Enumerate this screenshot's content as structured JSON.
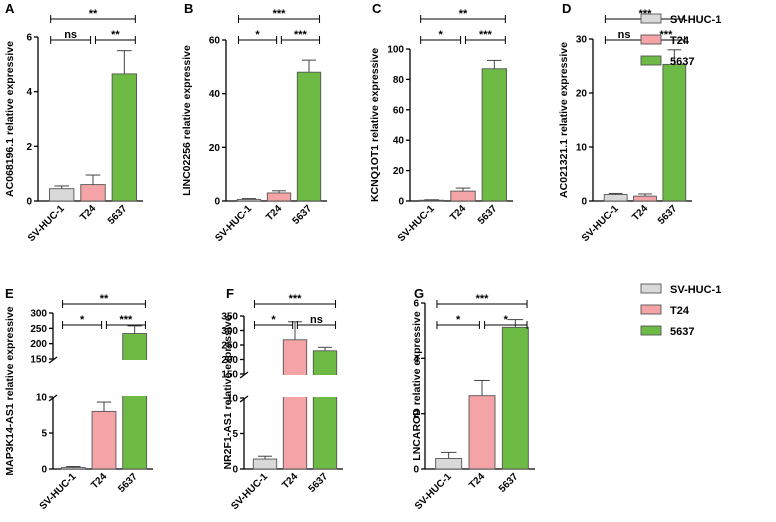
{
  "colors": {
    "SV-HUC-1": "#d9d9d9",
    "T24": "#f4a3a7",
    "5637": "#6dbb45"
  },
  "legend": [
    "SV-HUC-1",
    "T24",
    "5637"
  ],
  "chart_data": [
    {
      "panel": "A",
      "type": "bar",
      "categories": [
        "SV-HUC-1",
        "T24",
        "5637"
      ],
      "values": [
        0.45,
        0.6,
        4.65
      ],
      "errors": [
        0.1,
        0.35,
        0.85
      ],
      "ylabel": "AC068196.1 relative expressive",
      "ylim": [
        0,
        6
      ],
      "yticks": [
        0,
        2,
        4,
        6
      ],
      "significance": [
        {
          "from": 0,
          "to": 2,
          "label": "**"
        },
        {
          "from": 0,
          "to": 1,
          "label": "ns"
        },
        {
          "from": 1,
          "to": 2,
          "label": "**"
        }
      ]
    },
    {
      "panel": "B",
      "type": "bar",
      "categories": [
        "SV-HUC-1",
        "T24",
        "5637"
      ],
      "values": [
        0.6,
        3,
        48
      ],
      "errors": [
        0.3,
        0.8,
        4.5
      ],
      "ylabel": "LINC02256 relative expressive",
      "ylim": [
        0,
        60
      ],
      "yticks": [
        0,
        20,
        40,
        60
      ],
      "significance": [
        {
          "from": 0,
          "to": 2,
          "label": "***"
        },
        {
          "from": 0,
          "to": 1,
          "label": "*"
        },
        {
          "from": 1,
          "to": 2,
          "label": "***"
        }
      ]
    },
    {
      "panel": "C",
      "type": "bar",
      "categories": [
        "SV-HUC-1",
        "T24",
        "5637"
      ],
      "values": [
        0.5,
        6.5,
        87
      ],
      "errors": [
        0.3,
        2,
        5.5
      ],
      "ylabel": "KCNQ1OT1 relative expressive",
      "ylim": [
        0,
        100
      ],
      "yticks": [
        0,
        20,
        40,
        60,
        80,
        100
      ],
      "significance": [
        {
          "from": 0,
          "to": 2,
          "label": "**"
        },
        {
          "from": 0,
          "to": 1,
          "label": "*"
        },
        {
          "from": 1,
          "to": 2,
          "label": "***"
        }
      ]
    },
    {
      "panel": "D",
      "type": "bar",
      "categories": [
        "SV-HUC-1",
        "T24",
        "5637"
      ],
      "values": [
        1.2,
        0.9,
        25.3
      ],
      "errors": [
        0.2,
        0.4,
        2.7
      ],
      "ylabel": "AC021321.1 relative expressive",
      "ylim": [
        0,
        30
      ],
      "yticks": [
        0,
        10,
        20,
        30
      ],
      "significance": [
        {
          "from": 0,
          "to": 2,
          "label": "***"
        },
        {
          "from": 0,
          "to": 1,
          "label": "ns"
        },
        {
          "from": 1,
          "to": 2,
          "label": "***"
        }
      ]
    },
    {
      "panel": "E",
      "type": "bar",
      "broken_axis": true,
      "categories": [
        "SV-HUC-1",
        "T24",
        "5637"
      ],
      "values": [
        0.2,
        8,
        233
      ],
      "errors": [
        0.15,
        1.3,
        25
      ],
      "ylabel": "MAP3K14-AS1 relative expressive",
      "lower_ylim": [
        0,
        10
      ],
      "lower_yticks": [
        0,
        5,
        10
      ],
      "upper_ylim": [
        150,
        300
      ],
      "upper_yticks": [
        150,
        200,
        250,
        300
      ],
      "significance": [
        {
          "from": 0,
          "to": 2,
          "label": "**"
        },
        {
          "from": 0,
          "to": 1,
          "label": "*"
        },
        {
          "from": 1,
          "to": 2,
          "label": "***"
        }
      ]
    },
    {
      "panel": "F",
      "type": "bar",
      "broken_axis": true,
      "categories": [
        "SV-HUC-1",
        "T24",
        "5637"
      ],
      "values": [
        1.4,
        268,
        230
      ],
      "errors": [
        0.4,
        62,
        12
      ],
      "ylabel": "NR2F1-AS1 relative expressive",
      "lower_ylim": [
        0,
        10
      ],
      "lower_yticks": [
        0,
        5,
        10
      ],
      "upper_ylim": [
        150,
        350
      ],
      "upper_yticks": [
        150,
        200,
        250,
        300,
        350
      ],
      "significance": [
        {
          "from": 0,
          "to": 2,
          "label": "***"
        },
        {
          "from": 0,
          "to": 1,
          "label": "*"
        },
        {
          "from": 1,
          "to": 2,
          "label": "ns"
        }
      ]
    },
    {
      "panel": "G",
      "type": "bar",
      "categories": [
        "SV-HUC-1",
        "T24",
        "5637"
      ],
      "values": [
        0.38,
        2.65,
        5.12
      ],
      "errors": [
        0.22,
        0.55,
        0.28
      ],
      "ylabel": "LNCAROD relative expressive",
      "ylim": [
        0,
        6
      ],
      "yticks": [
        0,
        2,
        4,
        6
      ],
      "significance": [
        {
          "from": 0,
          "to": 2,
          "label": "***"
        },
        {
          "from": 0,
          "to": 1,
          "label": "*"
        },
        {
          "from": 1,
          "to": 2,
          "label": "*"
        }
      ]
    }
  ]
}
